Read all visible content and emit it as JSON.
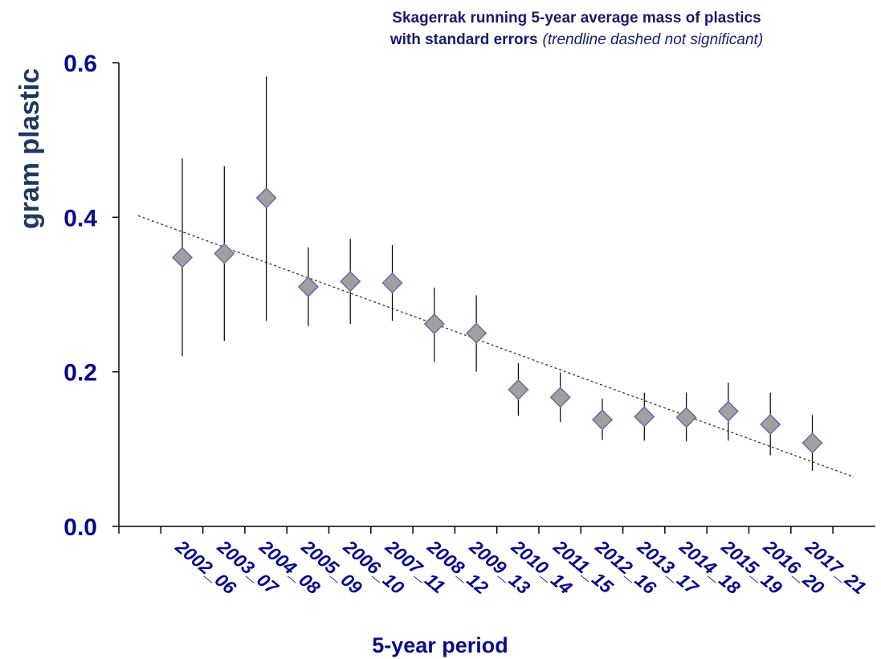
{
  "chart_data": {
    "type": "scatter",
    "title_line1": "Skagerrak running 5-year average mass of plastics",
    "title_line2": "with standard errors",
    "title_note": "(trendline dashed not significant)",
    "xlabel": "5-year period",
    "ylabel": "gram plastic",
    "ylim": [
      0,
      0.6
    ],
    "yticks": [
      "0.0",
      "0.2",
      "0.4",
      "0.6"
    ],
    "categories": [
      "2002_06",
      "2003_07",
      "2004_08",
      "2005_09",
      "2006_10",
      "2007_11",
      "2008_12",
      "2009_13",
      "2010_14",
      "2011_15",
      "2012_16",
      "2013_17",
      "2014_18",
      "2015_19",
      "2016_20",
      "2017_21"
    ],
    "values": [
      0.348,
      0.353,
      0.425,
      0.31,
      0.317,
      0.315,
      0.262,
      0.25,
      0.177,
      0.167,
      0.138,
      0.142,
      0.141,
      0.149,
      0.132,
      0.108
    ],
    "error_low": [
      0.22,
      0.24,
      0.266,
      0.259,
      0.262,
      0.266,
      0.213,
      0.2,
      0.143,
      0.135,
      0.112,
      0.111,
      0.11,
      0.111,
      0.092,
      0.072
    ],
    "error_high": [
      0.476,
      0.466,
      0.582,
      0.361,
      0.372,
      0.364,
      0.309,
      0.299,
      0.211,
      0.199,
      0.165,
      0.173,
      0.173,
      0.186,
      0.173,
      0.144
    ],
    "trendline": {
      "style": "dashed",
      "y_start": 0.402,
      "y_end": 0.064
    },
    "marker": "diamond",
    "colors": {
      "marker_fill": "#a0a0a0",
      "marker_edge": "#6a6aa8",
      "axis_text": "#0a0a8c",
      "title": "#1a1a6e",
      "ylabel": "#1f3a5f"
    },
    "grid": false,
    "legend": "none"
  }
}
